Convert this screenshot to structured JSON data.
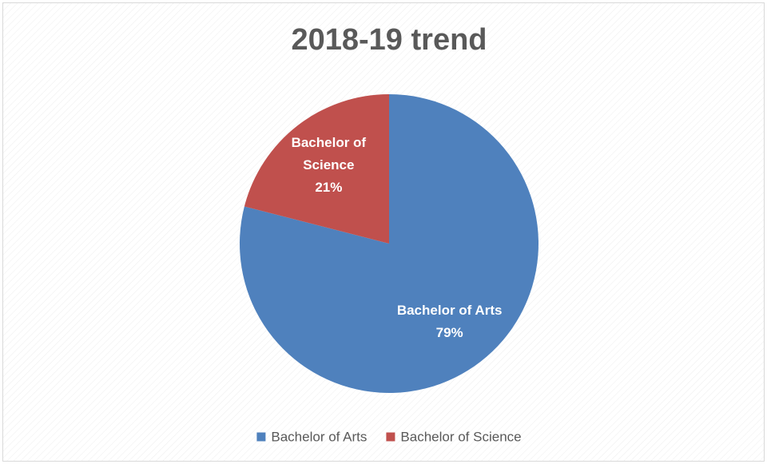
{
  "chart_data": {
    "type": "pie",
    "title": "2018-19 trend",
    "categories": [
      "Bachelor of Arts",
      "Bachelor of Science"
    ],
    "values": [
      79,
      21
    ],
    "value_labels": [
      "79%",
      "21%"
    ],
    "colors": [
      "#4f81bd",
      "#c0504d"
    ],
    "legend": "bottom"
  }
}
